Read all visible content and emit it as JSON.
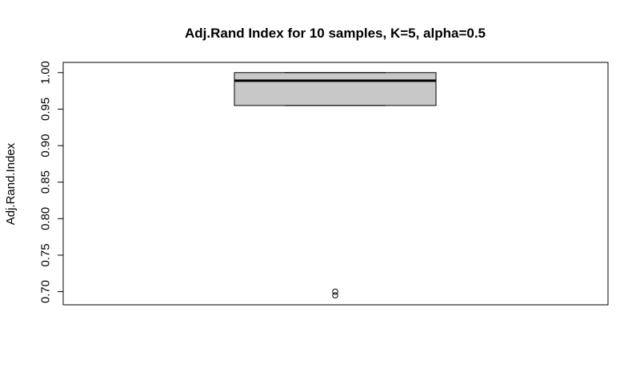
{
  "chart_data": {
    "type": "boxplot",
    "title": "Adj.Rand Index for 10 samples, K=5, alpha=0.5",
    "xlabel": "",
    "ylabel": "Adj.Rand.Index",
    "ylim": [
      0.682,
      1.014
    ],
    "yticks": [
      0.7,
      0.75,
      0.8,
      0.85,
      0.9,
      0.95,
      1.0
    ],
    "ytick_labels": [
      "0.70",
      "0.75",
      "0.80",
      "0.85",
      "0.90",
      "0.95",
      "1.00"
    ],
    "grid": false,
    "box": {
      "whisker_low": 0.955,
      "q1": 0.955,
      "median": 0.989,
      "q3": 1.0,
      "whisker_high": 1.0,
      "fill": "#c8c8c8"
    },
    "outliers": [
      0.7,
      0.695
    ]
  }
}
